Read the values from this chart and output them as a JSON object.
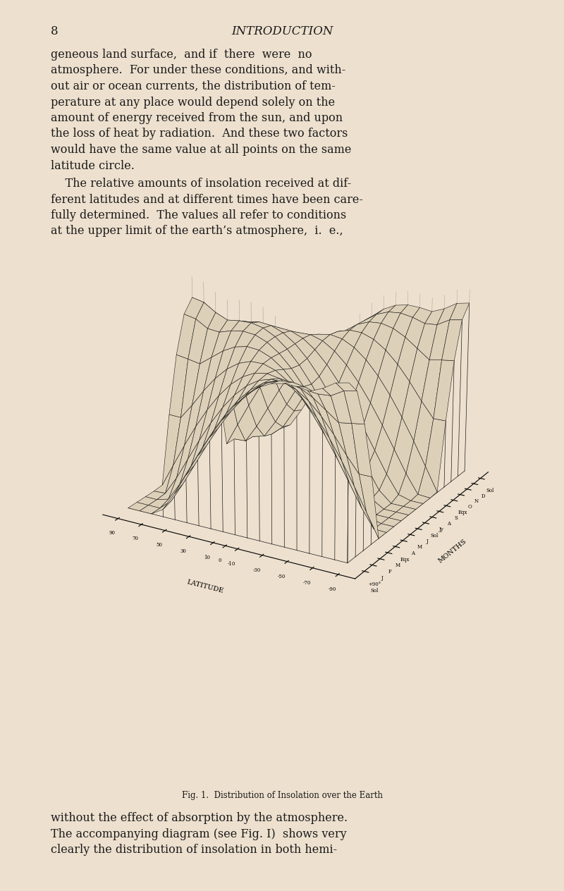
{
  "page_background": "#ede0ce",
  "surface_color": "#ddd0b8",
  "line_color": "#1a1a1a",
  "title_text": "Fig. 1.  Distribution of Insolation over the Earth",
  "header_number": "8",
  "header_title": "INTRODUCTION",
  "lat_label": "LATITUDE",
  "month_label": "MONTHS",
  "elev": 22,
  "azim": 210,
  "fig_caption_fontsize": 8.5,
  "body_fontsize": 11.5,
  "header_fontsize": 12
}
